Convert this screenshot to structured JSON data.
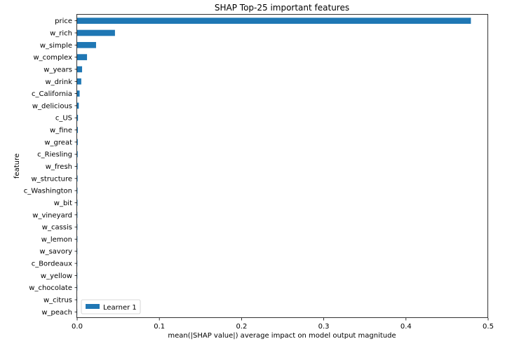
{
  "chart_data": {
    "type": "bar",
    "orientation": "horizontal",
    "title": "SHAP Top-25 important features",
    "xlabel": "mean(|SHAP value|) average impact on model output magnitude",
    "ylabel": "feature",
    "xlim": [
      0,
      0.5
    ],
    "xticks": [
      0,
      0.1,
      0.2,
      0.3,
      0.4,
      0.5
    ],
    "xtick_labels": [
      "0.0",
      "0.1",
      "0.2",
      "0.3",
      "0.4",
      "0.5"
    ],
    "grid": false,
    "legend_position": "lower-left",
    "bar_color": "#1f77b4",
    "categories": [
      "price",
      "w_rich",
      "w_simple",
      "w_complex",
      "w_years",
      "w_drink",
      "c_California",
      "w_delicious",
      "c_US",
      "w_fine",
      "w_great",
      "c_Riesling",
      "w_fresh",
      "w_structure",
      "c_Washington",
      "w_bit",
      "w_vineyard",
      "w_cassis",
      "w_lemon",
      "w_savory",
      "c_Bordeaux",
      "w_yellow",
      "w_chocolate",
      "w_citrus",
      "w_peach"
    ],
    "series": [
      {
        "name": "Learner 1",
        "values": [
          0.479,
          0.046,
          0.023,
          0.012,
          0.006,
          0.005,
          0.003,
          0.002,
          0.001,
          0.0008,
          0.0007,
          0.0006,
          0.0005,
          0.0005,
          0.0004,
          0.0004,
          0.0003,
          0.0003,
          0.0003,
          0.0002,
          0.0002,
          0.0002,
          0.0002,
          0.0001,
          0.0001
        ]
      }
    ]
  }
}
